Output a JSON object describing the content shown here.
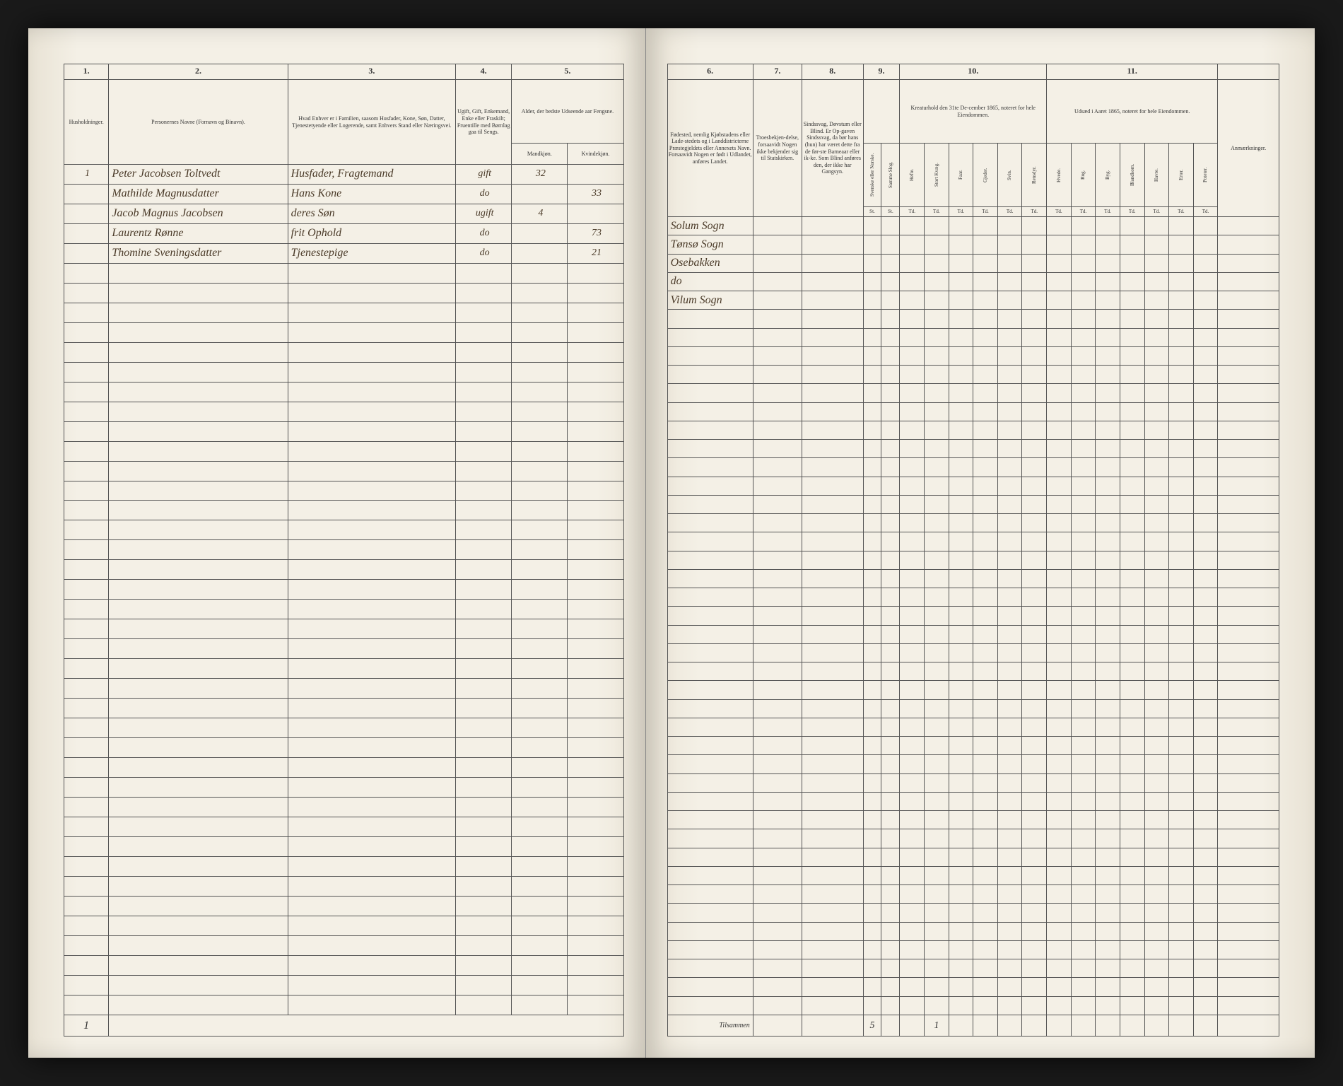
{
  "leftPage": {
    "columns": [
      {
        "num": "1.",
        "header": "Husholdninger.",
        "width": "8%"
      },
      {
        "num": "2.",
        "header": "Personernes Navne (Fornavn og Binavn).",
        "width": "32%"
      },
      {
        "num": "3.",
        "header": "Hvad Enhver er i Familien, saasom Husfader, Kone, Søn, Datter, Tjenestetyende eller Logerende, samt Enhvers Stand eller Næringsvei.",
        "width": "30%"
      },
      {
        "num": "4.",
        "header": "Ugift, Gift, Enkemand, Enke eller Fraskilt; Fruentille med Børnlag gaa til Sengs.",
        "width": "10%"
      },
      {
        "num": "5.",
        "header": "Alder, der bedste Udseende aar Fengsne.",
        "width": "20%",
        "subcols": [
          "Mandkjøn.",
          "Kvindekjøn."
        ]
      }
    ],
    "rows": [
      {
        "household": "1",
        "name": "Peter Jacobsen Toltvedt",
        "role": "Husfader, Fragtemand",
        "status": "gift",
        "ageM": "32",
        "ageF": ""
      },
      {
        "household": "",
        "name": "Mathilde Magnusdatter",
        "role": "Hans Kone",
        "status": "do",
        "ageM": "",
        "ageF": "33"
      },
      {
        "household": "",
        "name": "Jacob Magnus Jacobsen",
        "role": "deres Søn",
        "status": "ugift",
        "ageM": "4",
        "ageF": ""
      },
      {
        "household": "",
        "name": "Laurentz Rønne",
        "role": "frit Ophold",
        "status": "do",
        "ageM": "",
        "ageF": "73"
      },
      {
        "household": "",
        "name": "Thomine Sveningsdatter",
        "role": "Tjenestepige",
        "status": "do",
        "ageM": "",
        "ageF": "21"
      }
    ],
    "footerNum": "1"
  },
  "rightPage": {
    "columns": [
      {
        "num": "6.",
        "header": "Fødested, nemlig Kjøbstadens eller Lade-stedets og i Landdistricterne Præstegjeldets eller Annexets Navn. Forsaavidt Nogen er født i Udlandet, anføres Landet.",
        "width": "14%"
      },
      {
        "num": "7.",
        "header": "Troesbekjen-delse, forsaavidt Nogen ikke bekjender sig til Statskirken.",
        "width": "8%"
      },
      {
        "num": "8.",
        "header": "Sindssvag, Døvstum eller Blind. Er Op-gaven Sindssvag, da bør hans (hun) har været dette fra de før-ste Barneaar eller ik-ke. Som Blind anføres den, der ikke har Gangsyn.",
        "width": "10%"
      },
      {
        "num": "9.",
        "header": "",
        "width": "6%",
        "subcols": [
          "Svenske eller Norske.",
          "Samme Slog."
        ]
      },
      {
        "num": "10.",
        "header": "Kreaturhold den 31te De-cember 1865, noteret for hele Eiendommen.",
        "width": "24%",
        "subcols": [
          "Hefte.",
          "Stort Kvæg.",
          "Faar.",
          "Gjeder.",
          "Svin.",
          "Rensdyr."
        ]
      },
      {
        "num": "11.",
        "header": "Udsæd i Aaret 1865, noteret for hele Eiendommen.",
        "width": "28%",
        "subcols": [
          "Hvede.",
          "Rug.",
          "Byg.",
          "Blandkorn.",
          "Havre.",
          "Erter.",
          "Poteter."
        ]
      },
      {
        "num": "",
        "header": "Anmærkninger.",
        "width": "10%"
      }
    ],
    "subRowLabel": "Td.",
    "rows": [
      {
        "birthplace": "Solum Sogn"
      },
      {
        "birthplace": "Tønsø Sogn"
      },
      {
        "birthplace": "Osebakken"
      },
      {
        "birthplace": "do"
      },
      {
        "birthplace": "Vilum Sogn"
      }
    ],
    "footerLabel": "Tilsammen",
    "footerCount": "5",
    "footerSub": "1"
  },
  "emptyRowCount": 38
}
